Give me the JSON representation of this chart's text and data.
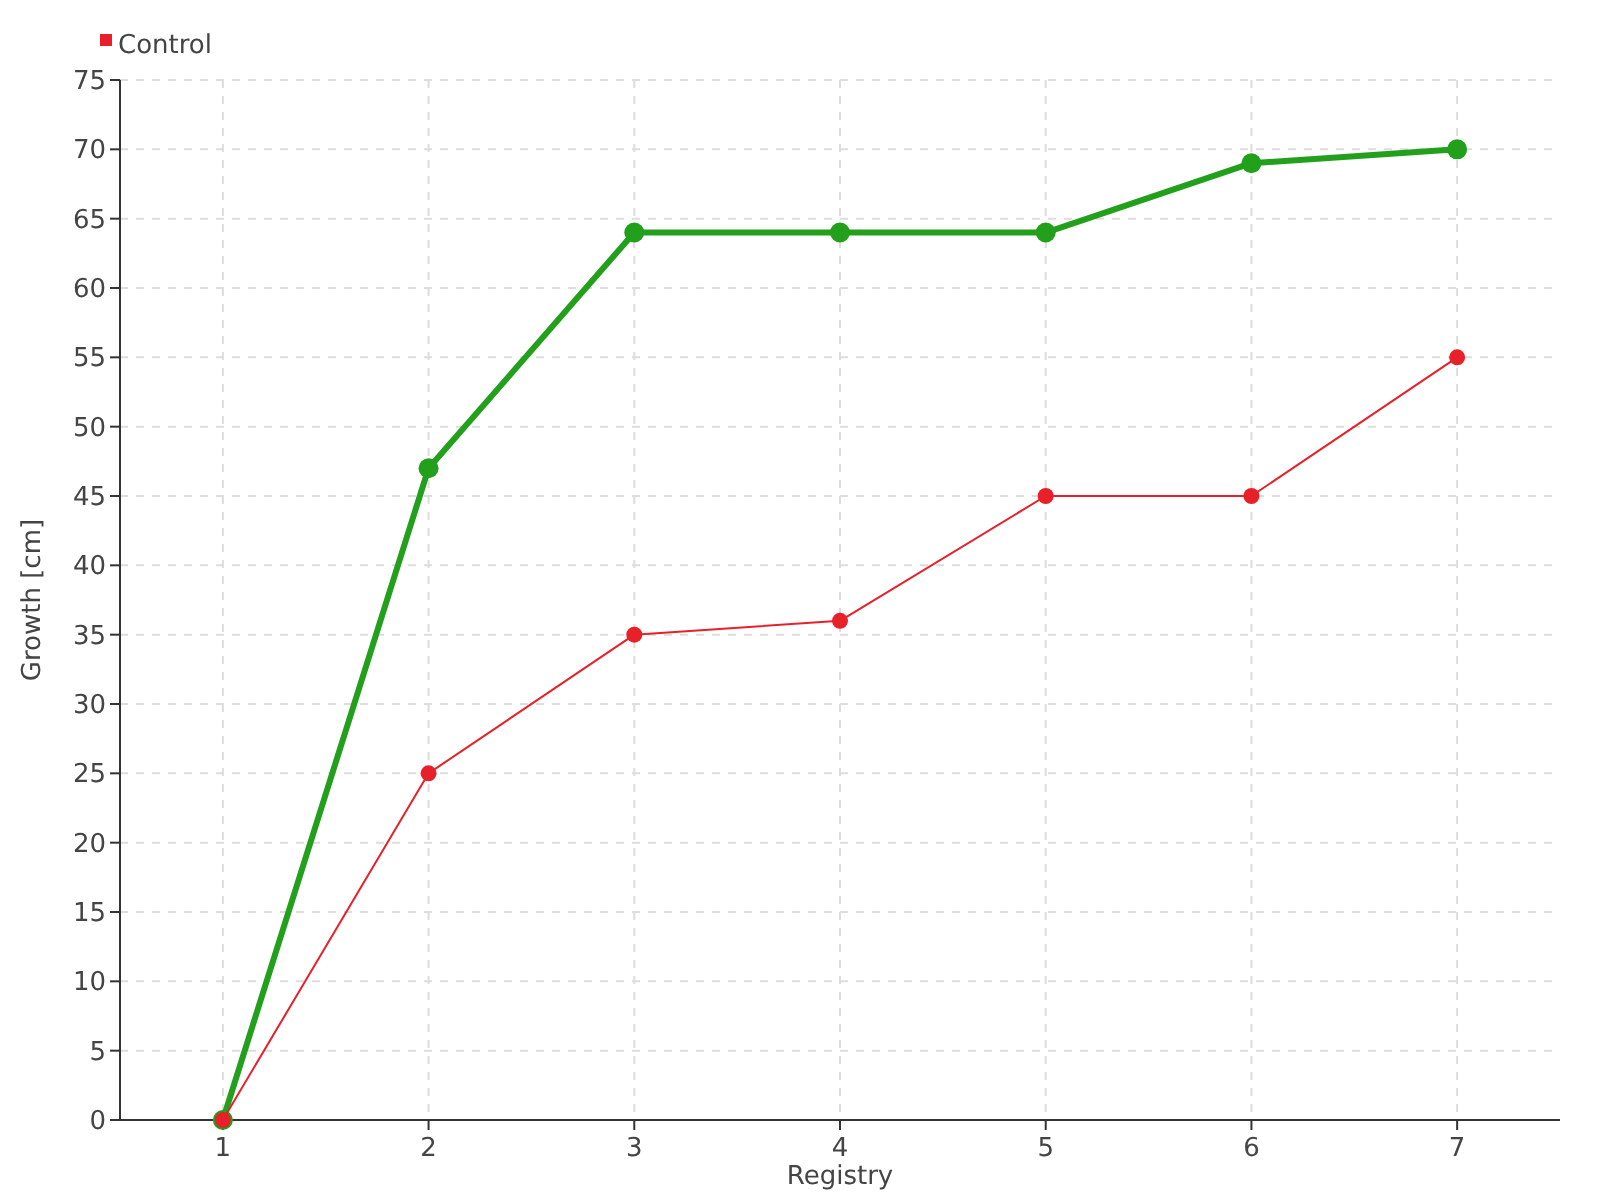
{
  "chart_data": {
    "type": "line",
    "xlabel": "Registry",
    "ylabel": "Growth [cm]",
    "categories": [
      "1",
      "2",
      "3",
      "4",
      "5",
      "6",
      "7"
    ],
    "series": [
      {
        "color": "#22a01c",
        "values": [
          0,
          47,
          64,
          64,
          64,
          69,
          70
        ]
      },
      {
        "name": "Control",
        "color": "#e8202a",
        "values": [
          0,
          25,
          35,
          36,
          45,
          45,
          55
        ]
      }
    ],
    "ylim": [
      0,
      75
    ],
    "yticks": [
      0,
      5,
      10,
      15,
      20,
      25,
      30,
      35,
      40,
      45,
      50,
      55,
      60,
      65,
      70,
      75
    ],
    "grid": true,
    "legend": "top left",
    "marker": "circle"
  }
}
